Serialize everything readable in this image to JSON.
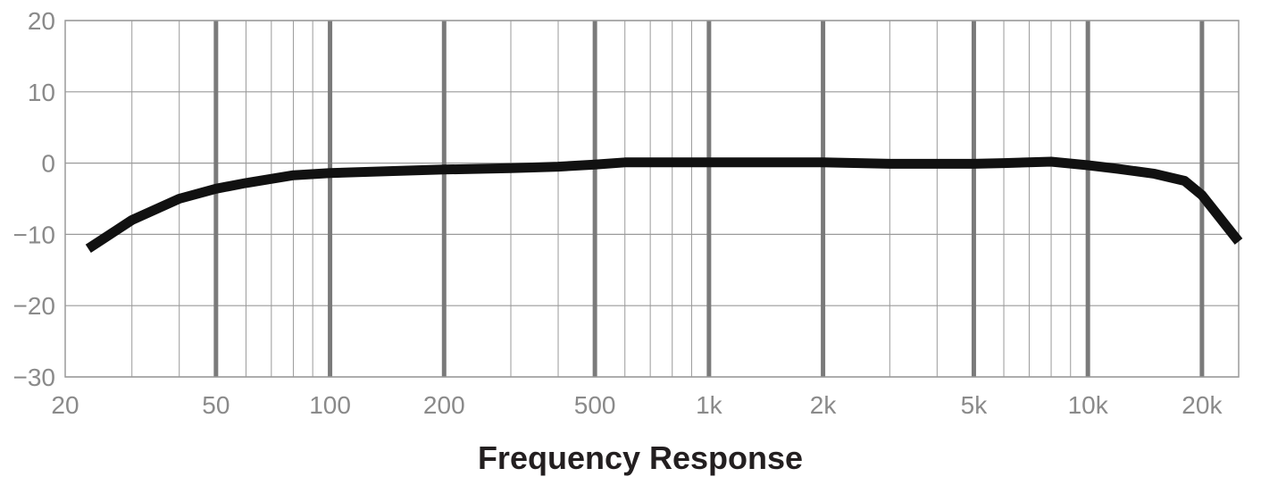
{
  "chart_data": {
    "type": "line",
    "title": "Frequency Response",
    "xscale": "log",
    "xlim": [
      20,
      25000
    ],
    "ylim": [
      -30,
      20
    ],
    "y_ticks": [
      20,
      10,
      0,
      -10,
      -20,
      -30
    ],
    "y_tick_labels": [
      "20",
      "10",
      "0",
      "−10",
      "−20",
      "−30"
    ],
    "x_ticks": [
      20,
      50,
      100,
      200,
      500,
      1000,
      2000,
      5000,
      10000,
      20000
    ],
    "x_tick_labels": [
      "20",
      "50",
      "100",
      "200",
      "500",
      "1k",
      "2k",
      "5k",
      "10k",
      "20k"
    ],
    "grid": true,
    "series": [
      {
        "color": "#111111",
        "x": [
          23,
          30,
          40,
          50,
          60,
          80,
          100,
          150,
          200,
          300,
          400,
          500,
          600,
          800,
          1000,
          1500,
          2000,
          3000,
          5000,
          6000,
          8000,
          10000,
          12000,
          15000,
          18000,
          20000,
          25000
        ],
        "y": [
          -12,
          -8,
          -5,
          -3.6,
          -2.8,
          -1.7,
          -1.4,
          -1.1,
          -0.9,
          -0.7,
          -0.5,
          -0.2,
          0.1,
          0.1,
          0.1,
          0.1,
          0.1,
          -0.1,
          -0.1,
          0,
          0.2,
          -0.3,
          -0.8,
          -1.5,
          -2.5,
          -4.5,
          -11
        ]
      }
    ]
  },
  "colors": {
    "minor_grid": "#9a9a9a",
    "major_grid": "#7a7a7a",
    "frame": "#9a9a9a",
    "curve": "#111111",
    "tick_text": "#8a8a8a",
    "title_text": "#231f20"
  }
}
